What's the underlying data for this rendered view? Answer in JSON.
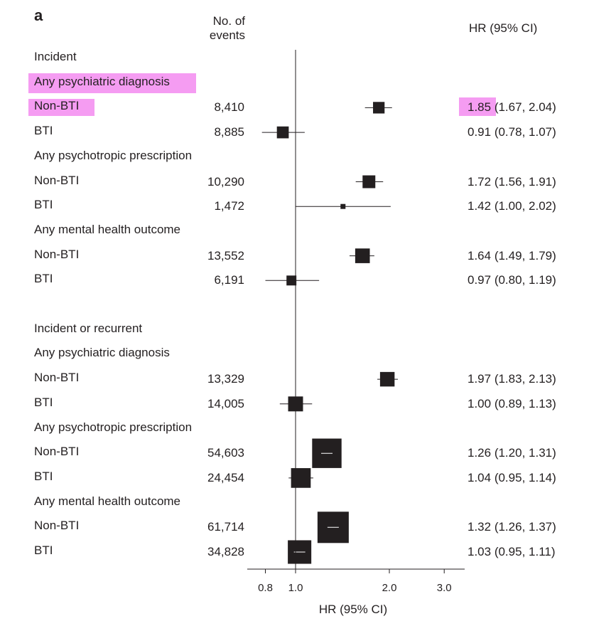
{
  "panel_label": "a",
  "header": {
    "events_line1": "No. of",
    "events_line2": "events",
    "hr": "HR (95% CI)"
  },
  "chart_data": {
    "type": "forest",
    "xlabel": "HR (95% CI)",
    "xticks": [
      0.8,
      1.0,
      2.0,
      3.0
    ],
    "xtick_labels": [
      "0.8",
      "1.0",
      "2.0",
      "3.0"
    ],
    "x_scale": "log",
    "reference_line": 1.0,
    "groups": [
      {
        "label": "Incident",
        "subgroups": [
          {
            "label": "Any psychiatric diagnosis",
            "rows": [
              {
                "label": "Non-BTI",
                "events": "8,410",
                "hr": 1.85,
                "lo": 1.67,
                "hi": 2.04,
                "hr_text": "1.85",
                "ci_text": "(1.67, 2.04)"
              },
              {
                "label": "BTI",
                "events": "8,885",
                "hr": 0.91,
                "lo": 0.78,
                "hi": 1.07,
                "hr_text": "0.91",
                "ci_text": "(0.78, 1.07)"
              }
            ]
          },
          {
            "label": "Any psychotropic prescription",
            "rows": [
              {
                "label": "Non-BTI",
                "events": "10,290",
                "hr": 1.72,
                "lo": 1.56,
                "hi": 1.91,
                "hr_text": "1.72",
                "ci_text": "(1.56, 1.91)"
              },
              {
                "label": "BTI",
                "events": "1,472",
                "hr": 1.42,
                "lo": 1.0,
                "hi": 2.02,
                "hr_text": "1.42",
                "ci_text": "(1.00, 2.02)"
              }
            ]
          },
          {
            "label": "Any mental health outcome",
            "rows": [
              {
                "label": "Non-BTI",
                "events": "13,552",
                "hr": 1.64,
                "lo": 1.49,
                "hi": 1.79,
                "hr_text": "1.64",
                "ci_text": "(1.49, 1.79)"
              },
              {
                "label": "BTI",
                "events": "6,191",
                "hr": 0.97,
                "lo": 0.8,
                "hi": 1.19,
                "hr_text": "0.97",
                "ci_text": "(0.80, 1.19)"
              }
            ]
          }
        ]
      },
      {
        "label": "Incident or recurrent",
        "subgroups": [
          {
            "label": "Any psychiatric diagnosis",
            "rows": [
              {
                "label": "Non-BTI",
                "events": "13,329",
                "hr": 1.97,
                "lo": 1.83,
                "hi": 2.13,
                "hr_text": "1.97",
                "ci_text": "(1.83, 2.13)"
              },
              {
                "label": "BTI",
                "events": "14,005",
                "hr": 1.0,
                "lo": 0.89,
                "hi": 1.13,
                "hr_text": "1.00",
                "ci_text": "(0.89, 1.13)"
              }
            ]
          },
          {
            "label": "Any psychotropic prescription",
            "rows": [
              {
                "label": "Non-BTI",
                "events": "54,603",
                "hr": 1.26,
                "lo": 1.2,
                "hi": 1.31,
                "hr_text": "1.26",
                "ci_text": "(1.20, 1.31)"
              },
              {
                "label": "BTI",
                "events": "24,454",
                "hr": 1.04,
                "lo": 0.95,
                "hi": 1.14,
                "hr_text": "1.04",
                "ci_text": "(0.95, 1.14)"
              }
            ]
          },
          {
            "label": "Any mental health outcome",
            "rows": [
              {
                "label": "Non-BTI",
                "events": "61,714",
                "hr": 1.32,
                "lo": 1.26,
                "hi": 1.37,
                "hr_text": "1.32",
                "ci_text": "(1.26, 1.37)"
              },
              {
                "label": "BTI",
                "events": "34,828",
                "hr": 1.03,
                "lo": 0.95,
                "hi": 1.11,
                "hr_text": "1.03",
                "ci_text": "(0.95, 1.11)"
              }
            ]
          }
        ]
      }
    ]
  },
  "highlighted_items": [
    "Any psychiatric diagnosis",
    "Non-BTI",
    "1.85"
  ],
  "highlight_color": "#f59cf2",
  "marker_color": "#231f20"
}
